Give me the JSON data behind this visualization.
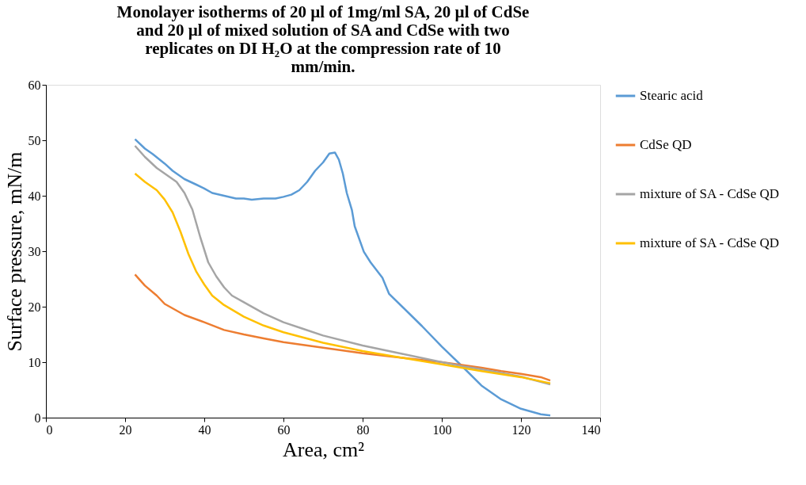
{
  "chart_data": {
    "type": "line",
    "title": "Monolayer isotherms of 20 µl of  1mg/ml SA, 20 µl of CdSe and 20 µl of mixed solution of SA and CdSe with two replicates   on DI H₂O at the compression rate of 10 mm/min.",
    "xlabel": "Area, cm²",
    "ylabel": "Surface pressure, mN/m",
    "xlim": [
      0,
      140
    ],
    "xticks": [
      0,
      20,
      40,
      60,
      80,
      100,
      120,
      140
    ],
    "ylim": [
      0,
      60
    ],
    "yticks": [
      0,
      10,
      20,
      30,
      40,
      50,
      60
    ],
    "grid": false,
    "legend": "right",
    "marker": "none",
    "line_style": "solid",
    "series": [
      {
        "name": "Stearic acid",
        "color": "#5b9bd5",
        "x": [
          22.5,
          25,
          27,
          30,
          32,
          35,
          38,
          40,
          42,
          45,
          48,
          50,
          52,
          55,
          58,
          60,
          62,
          64,
          66,
          68,
          70,
          71.6,
          73,
          74,
          75,
          76,
          77.3,
          78,
          80.3,
          82,
          85,
          86.7,
          90,
          95,
          100,
          104.8,
          110,
          115,
          120,
          125,
          127.4
        ],
        "values": [
          50.2,
          48.5,
          47.5,
          45.8,
          44.5,
          43,
          42,
          41.3,
          40.5,
          40,
          39.5,
          39.5,
          39.3,
          39.5,
          39.5,
          39.8,
          40.2,
          41,
          42.5,
          44.5,
          46,
          47.6,
          47.8,
          46.5,
          44,
          40.5,
          37.4,
          34.5,
          29.9,
          28,
          25.2,
          22.3,
          20,
          16.5,
          12.8,
          9.5,
          5.8,
          3.3,
          1.6,
          0.6,
          0.4
        ]
      },
      {
        "name": "CdSe QD",
        "color": "#ed7d31",
        "x": [
          22.5,
          25,
          28,
          30,
          35,
          40,
          45,
          50,
          55,
          60,
          70,
          80,
          90,
          100,
          105,
          110,
          115,
          120,
          125,
          127.4
        ],
        "values": [
          25.8,
          23.8,
          22,
          20.5,
          18.5,
          17.2,
          15.8,
          15,
          14.3,
          13.6,
          12.6,
          11.6,
          10.8,
          10,
          9.5,
          9,
          8.4,
          7.9,
          7.3,
          6.7
        ]
      },
      {
        "name": "mixture of  SA - CdSe QD",
        "color": "#a5a5a5",
        "x": [
          22.5,
          25,
          28,
          30,
          33,
          35,
          37,
          39,
          41,
          43,
          45,
          47,
          50,
          55,
          60,
          65,
          70,
          80,
          90,
          100,
          105,
          110,
          120,
          127.4
        ],
        "values": [
          49,
          47,
          45,
          44,
          42.5,
          40.5,
          37.5,
          32.5,
          28,
          25.5,
          23.5,
          22,
          20.8,
          18.8,
          17.2,
          16,
          14.8,
          13,
          11.5,
          10,
          9.3,
          8.7,
          7.4,
          6.0
        ]
      },
      {
        "name": "mixture of SA - CdSe QD",
        "color": "#ffc000",
        "x": [
          22.5,
          25,
          28,
          30,
          32,
          34,
          36,
          38,
          40,
          42,
          45,
          50,
          55,
          60,
          70,
          80,
          90,
          100,
          105,
          110,
          120,
          127.4
        ],
        "values": [
          44,
          42.5,
          41,
          39.3,
          37,
          33.5,
          29.5,
          26.3,
          24,
          22,
          20.3,
          18.2,
          16.6,
          15.4,
          13.5,
          12,
          10.8,
          9.6,
          9,
          8.4,
          7.3,
          6.2
        ]
      }
    ]
  }
}
